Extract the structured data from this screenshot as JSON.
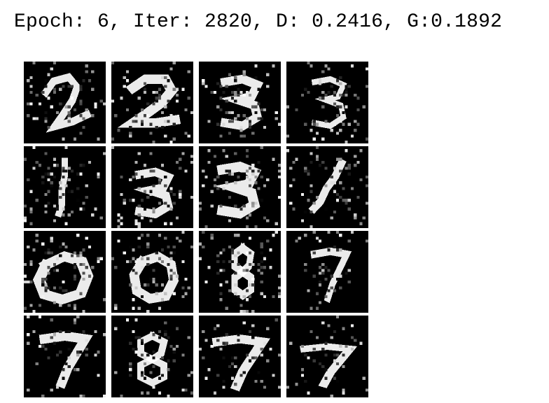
{
  "status_text": "Epoch: 6, Iter: 2820, D: 0.2416, G:0.1892",
  "grid": {
    "rows": 4,
    "cols": 4,
    "samples": [
      {
        "digit": "2"
      },
      {
        "digit": "2"
      },
      {
        "digit": "3"
      },
      {
        "digit": "3"
      },
      {
        "digit": "1"
      },
      {
        "digit": "3"
      },
      {
        "digit": "3"
      },
      {
        "digit": "1"
      },
      {
        "digit": "0"
      },
      {
        "digit": "0"
      },
      {
        "digit": "8"
      },
      {
        "digit": "7"
      },
      {
        "digit": "7"
      },
      {
        "digit": "8"
      },
      {
        "digit": "7"
      },
      {
        "digit": "7"
      }
    ]
  },
  "colors": {
    "tile_background": "#000000",
    "stroke": "#ffffff",
    "page_background": "#ffffff"
  }
}
